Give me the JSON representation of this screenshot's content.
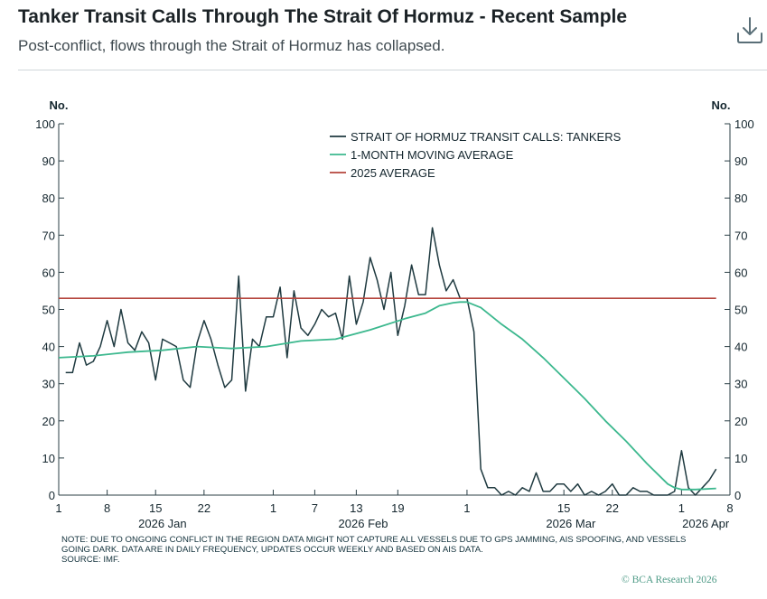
{
  "header": {
    "title": "Tanker Transit Calls Through The Strait Of Hormuz - Recent Sample",
    "subtitle": "Post-conflict, flows through the Strait of Hormuz has collapsed.",
    "download_icon": "download-icon"
  },
  "colors": {
    "tankers": "#1f3a40",
    "moving_average": "#3cb88e",
    "avg_2025": "#b5453c",
    "axis": "#2b3f46"
  },
  "chart_data": {
    "type": "line",
    "title": "Tanker Transit Calls Through The Strait Of Hormuz - Recent Sample",
    "y_unit_left": "No.",
    "y_unit_right": "No.",
    "ylim": [
      0,
      100
    ],
    "yticks": [
      0,
      10,
      20,
      30,
      40,
      50,
      60,
      70,
      80,
      90,
      100
    ],
    "x_start": "2026-01-01",
    "x_range_days": [
      0,
      97
    ],
    "xticks": [
      {
        "day": 0,
        "label": "1"
      },
      {
        "day": 7,
        "label": "8"
      },
      {
        "day": 14,
        "label": "15"
      },
      {
        "day": 21,
        "label": "22"
      },
      {
        "day": 31,
        "label": "1"
      },
      {
        "day": 37,
        "label": "7"
      },
      {
        "day": 43,
        "label": "13"
      },
      {
        "day": 49,
        "label": "19"
      },
      {
        "day": 59,
        "label": "1"
      },
      {
        "day": 73,
        "label": "15"
      },
      {
        "day": 80,
        "label": "22"
      },
      {
        "day": 90,
        "label": "1"
      },
      {
        "day": 97,
        "label": "8"
      }
    ],
    "month_labels": [
      {
        "day": 15,
        "label": "2026 Jan"
      },
      {
        "day": 44,
        "label": "2026 Feb"
      },
      {
        "day": 74,
        "label": "2026 Mar"
      },
      {
        "day": 93.5,
        "label": "2026 Apr"
      }
    ],
    "legend": [
      "STRAIT OF HORMUZ TRANSIT CALLS: TANKERS",
      "1-MONTH MOVING AVERAGE",
      "2025 AVERAGE"
    ],
    "legend_position": "top-center",
    "series": [
      {
        "name": "STRAIT OF HORMUZ TRANSIT CALLS: TANKERS",
        "x": [
          1,
          2,
          3,
          4,
          5,
          6,
          7,
          8,
          9,
          10,
          11,
          12,
          13,
          14,
          15,
          16,
          17,
          18,
          19,
          20,
          21,
          22,
          23,
          24,
          25,
          26,
          27,
          28,
          29,
          30,
          31,
          32,
          33,
          34,
          35,
          36,
          37,
          38,
          39,
          40,
          41,
          42,
          43,
          44,
          45,
          46,
          47,
          48,
          49,
          50,
          51,
          52,
          53,
          54,
          55,
          56,
          57,
          58,
          59,
          60,
          61,
          62,
          63,
          64,
          65,
          66,
          67,
          68,
          69,
          70,
          71,
          72,
          73,
          74,
          75,
          76,
          77,
          78,
          79,
          80,
          81,
          82,
          83,
          84,
          85,
          86,
          87,
          88,
          89,
          90,
          91,
          92,
          93,
          94,
          95
        ],
        "values": [
          33,
          33,
          41,
          35,
          36,
          40,
          47,
          40,
          50,
          41,
          39,
          44,
          41,
          31,
          42,
          41,
          40,
          31,
          29,
          41,
          47,
          42,
          35,
          29,
          31,
          59,
          28,
          42,
          40,
          48,
          48,
          56,
          37,
          55,
          45,
          43,
          46,
          50,
          48,
          49,
          42,
          59,
          46,
          52,
          64,
          58,
          50,
          60,
          43,
          51,
          62,
          54,
          54,
          72,
          62,
          55,
          58,
          53,
          53,
          44,
          7,
          2,
          2,
          0,
          1,
          0,
          2,
          1,
          6,
          1,
          1,
          3,
          3,
          1,
          3,
          0,
          1,
          0,
          1,
          3,
          0,
          0,
          2,
          1,
          1,
          0,
          0,
          0,
          1,
          12,
          2,
          0,
          2,
          4,
          7
        ]
      },
      {
        "name": "1-MONTH MOVING AVERAGE",
        "x": [
          0,
          5,
          10,
          15,
          20,
          25,
          30,
          35,
          40,
          45,
          50,
          53,
          55,
          57,
          58,
          59,
          61,
          64,
          67,
          70,
          73,
          76,
          79,
          82,
          85,
          88,
          89,
          90,
          92,
          95
        ],
        "values": [
          37,
          37.5,
          38.5,
          39,
          40,
          39.5,
          40,
          41.5,
          42,
          44.5,
          47.5,
          49,
          51,
          51.8,
          52,
          52,
          50.5,
          46,
          42,
          37,
          31.5,
          26,
          20,
          14.5,
          8.5,
          3,
          2,
          1.5,
          1.5,
          1.8
        ]
      },
      {
        "name": "2025 AVERAGE",
        "x": [
          0,
          95
        ],
        "values": [
          53,
          53
        ]
      }
    ],
    "grid": false
  },
  "notes": {
    "line1": "NOTE: DUE TO ONGOING CONFLICT IN THE REGION DATA MIGHT NOT CAPTURE ALL VESSELS DUE TO GPS JAMMING, AIS SPOOFING, AND VESSELS",
    "line2": "GOING DARK. DATA ARE IN DAILY FREQUENCY, UPDATES OCCUR WEEKLY AND BASED ON AIS DATA.",
    "line3": "SOURCE: IMF."
  },
  "footer": {
    "copyright": "© BCA Research 2026"
  }
}
